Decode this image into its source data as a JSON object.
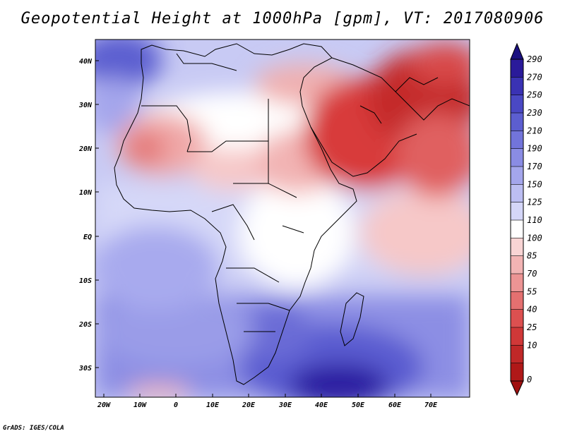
{
  "title": "Geopotential Height at 1000hPa [gpm], VT: 2017080906",
  "credit": "GrADS: IGES/COLA",
  "map": {
    "region": "Africa, Arabian Peninsula and western Indian Ocean",
    "lon_range": [
      -25,
      80
    ],
    "lat_range": [
      -37,
      45
    ],
    "lon_ticks": [
      "20W",
      "10W",
      "0",
      "10E",
      "20E",
      "30E",
      "40E",
      "50E",
      "60E",
      "70E"
    ],
    "lat_ticks": [
      "40N",
      "30N",
      "20N",
      "10N",
      "EQ",
      "10S",
      "20S",
      "30S"
    ],
    "variable": "Geopotential Height at 1000hPa",
    "units": "gpm",
    "valid_time": "2017080906"
  },
  "colorbar": {
    "labels": [
      "290",
      "270",
      "250",
      "230",
      "210",
      "190",
      "170",
      "150",
      "125",
      "110",
      "100",
      "85",
      "70",
      "55",
      "40",
      "25",
      "10",
      "0"
    ],
    "colors": [
      "#2a1a9a",
      "#3a32b4",
      "#4a48c4",
      "#5c5ed0",
      "#7274da",
      "#8a8ce4",
      "#a4a6ec",
      "#bcbef2",
      "#d4d6f8",
      "#ffffff",
      "#f8d4d4",
      "#f2b4b4",
      "#ec9494",
      "#e47070",
      "#dc5050",
      "#d03838",
      "#c02828",
      "#b01818"
    ]
  }
}
